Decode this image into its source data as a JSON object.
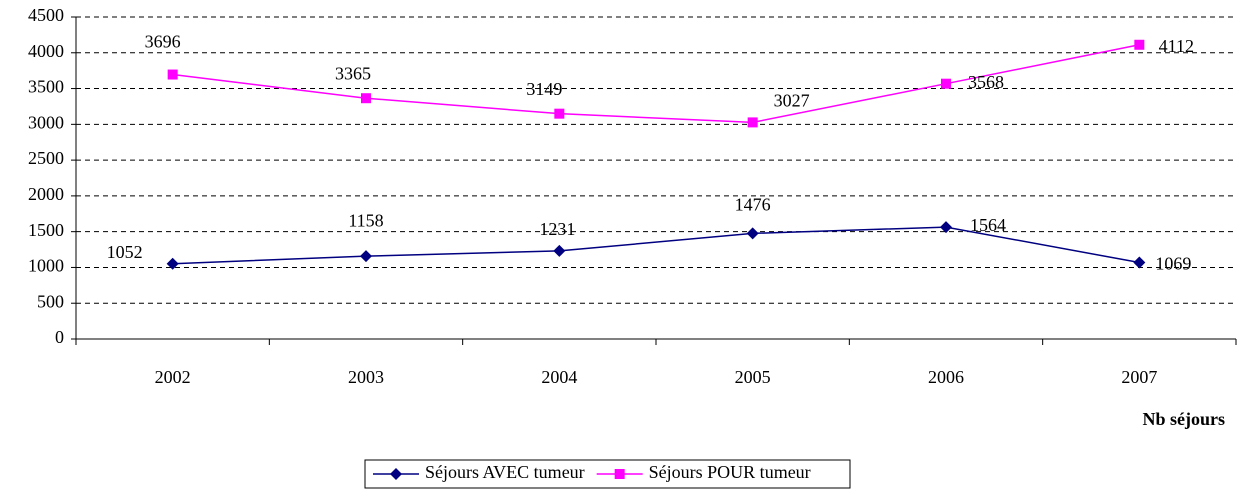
{
  "chart_data": {
    "type": "line",
    "categories": [
      "2002",
      "2003",
      "2004",
      "2005",
      "2006",
      "2007"
    ],
    "series": [
      {
        "name": "Séjours AVEC tumeur",
        "color": "#000080",
        "values": [
          1052,
          1158,
          1231,
          1476,
          1564,
          1069
        ]
      },
      {
        "name": "Séjours POUR tumeur",
        "color": "#ff00ff",
        "values": [
          3696,
          3365,
          3149,
          3027,
          3568,
          4112
        ]
      }
    ],
    "x_label": "Nb séjours",
    "ylim": [
      0,
      4500
    ],
    "yticks": [
      0,
      500,
      1000,
      1500,
      2000,
      2500,
      3000,
      3500,
      4000,
      4500
    ],
    "grid": true,
    "legend": "bottom"
  }
}
